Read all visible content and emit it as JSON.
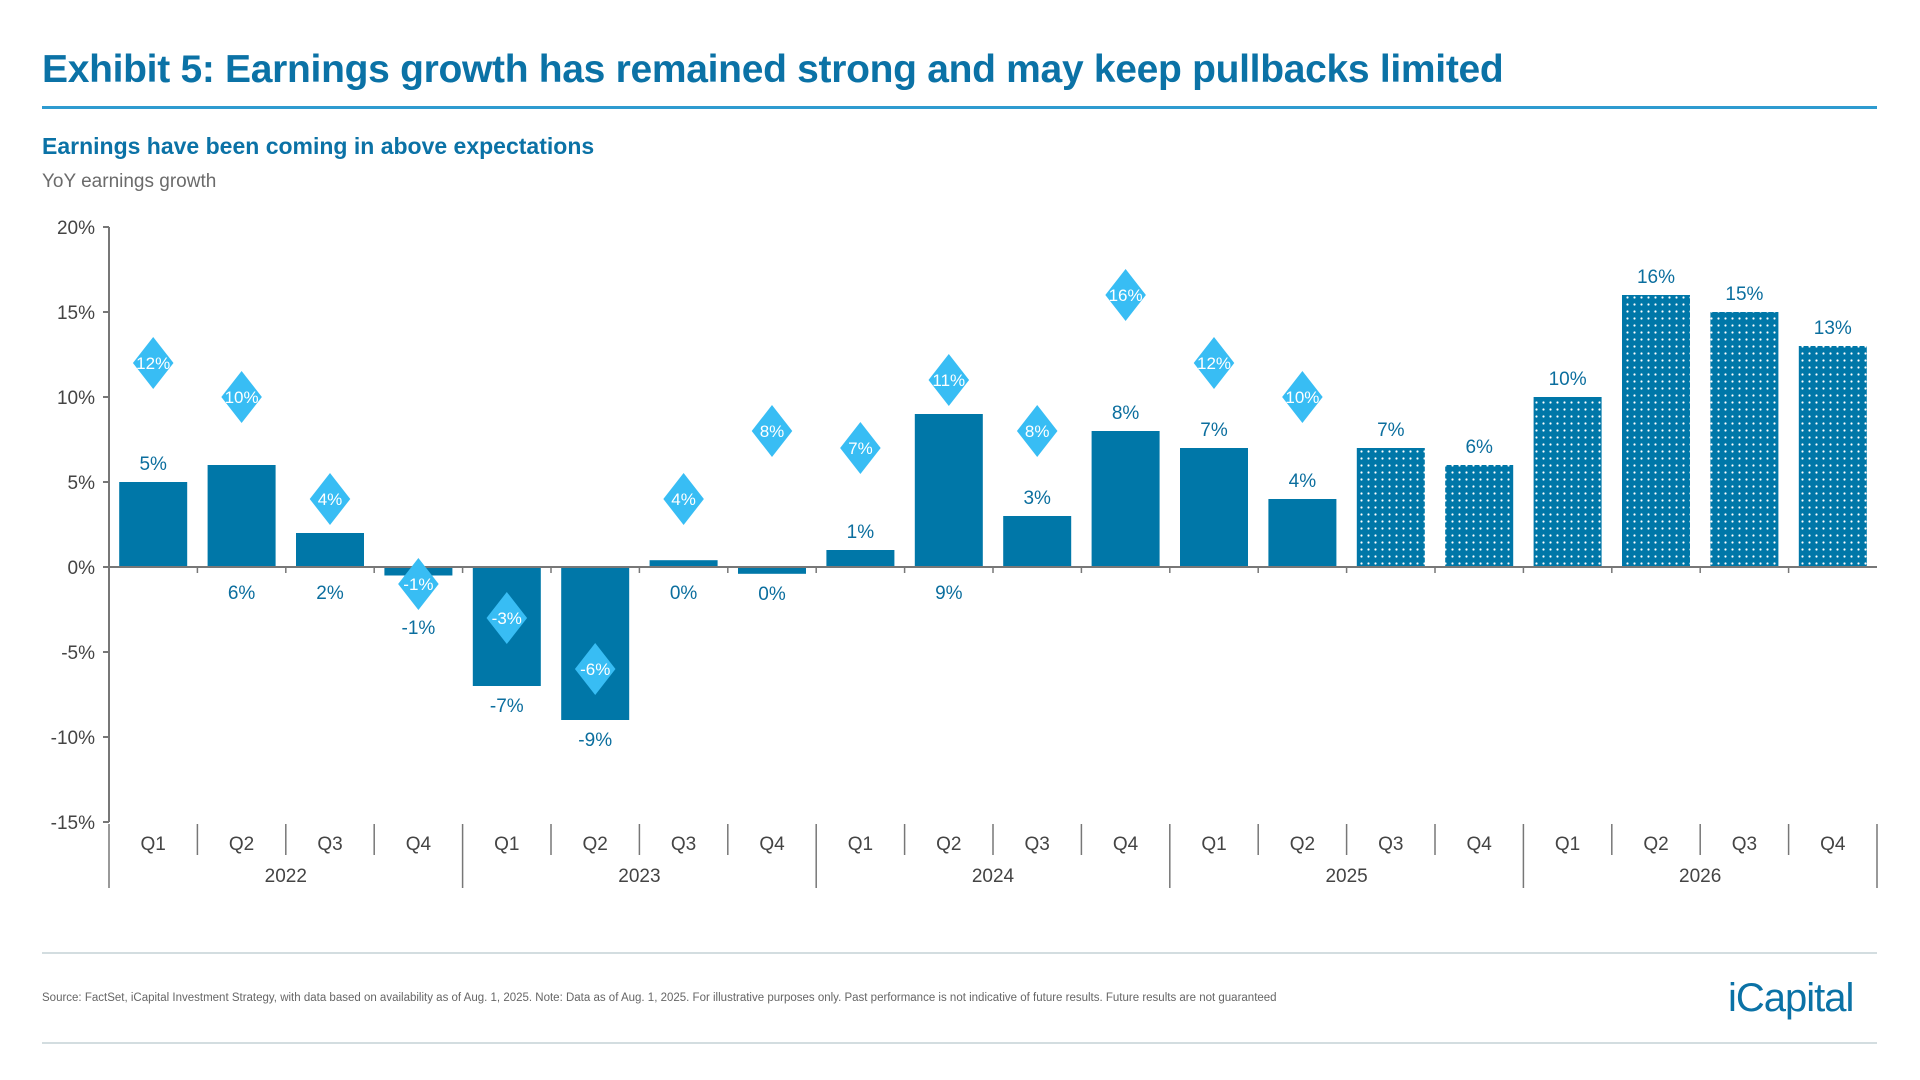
{
  "header": {
    "title": "Exhibit 5: Earnings growth has remained strong and may keep pullbacks limited",
    "subtitle": "Earnings have been coming in above expectations"
  },
  "footer": {
    "source": "Source: FactSet, iCapital Investment Strategy, with data based on availability as of Aug. 1, 2025. Note: Data as of Aug. 1, 2025.  For illustrative purposes only. Past performance is not indicative of future results. Future results are not guaranteed",
    "logo": "iCapital"
  },
  "colors": {
    "bar": "#0077A8",
    "diamond": "#38BDF4",
    "label": "#0B6E9E",
    "axis": "#777777"
  },
  "chart_data": {
    "type": "bar",
    "ylabel": "YoY earnings growth",
    "ylim": [
      -15,
      20
    ],
    "yticks": [
      "20%",
      "15%",
      "10%",
      "5%",
      "0%",
      "-5%",
      "-10%",
      "-15%"
    ],
    "ytick_values": [
      20,
      15,
      10,
      5,
      0,
      -5,
      -10,
      -15
    ],
    "categories": [
      "Q1",
      "Q2",
      "Q3",
      "Q4",
      "Q1",
      "Q2",
      "Q3",
      "Q4",
      "Q1",
      "Q2",
      "Q3",
      "Q4",
      "Q1",
      "Q2",
      "Q3",
      "Q4",
      "Q1",
      "Q2",
      "Q3",
      "Q4"
    ],
    "years": [
      "2022",
      "2023",
      "2024",
      "2025",
      "2026"
    ],
    "series": [
      {
        "type": "bar",
        "values": [
          5,
          6,
          2,
          -0.5,
          -7,
          -9,
          0.4,
          -0.4,
          1,
          9,
          3,
          8,
          7,
          4,
          7,
          6,
          10,
          16,
          15,
          13
        ],
        "labels": [
          "5%",
          "6%",
          "2%",
          "-1%",
          "-7%",
          "-9%",
          "0%",
          "0%",
          "1%",
          "9%",
          "3%",
          "8%",
          "7%",
          "4%",
          "7%",
          "6%",
          "10%",
          "16%",
          "15%",
          "13%"
        ],
        "estimate": [
          false,
          false,
          false,
          false,
          false,
          false,
          false,
          false,
          false,
          false,
          false,
          false,
          false,
          false,
          true,
          true,
          true,
          true,
          true,
          true
        ]
      },
      {
        "type": "diamond-marker",
        "values": [
          12,
          10,
          4,
          -1,
          -3,
          -6,
          4,
          8,
          7,
          11,
          8,
          16,
          12,
          10,
          null,
          null,
          null,
          null,
          null,
          null
        ],
        "labels": [
          "12%",
          "10%",
          "4%",
          "-1%",
          "-3%",
          "-6%",
          "4%",
          "8%",
          "7%",
          "11%",
          "8%",
          "16%",
          "12%",
          "10%",
          "",
          "",
          "",
          "",
          "",
          ""
        ]
      }
    ],
    "grid": false,
    "legend": "none"
  }
}
